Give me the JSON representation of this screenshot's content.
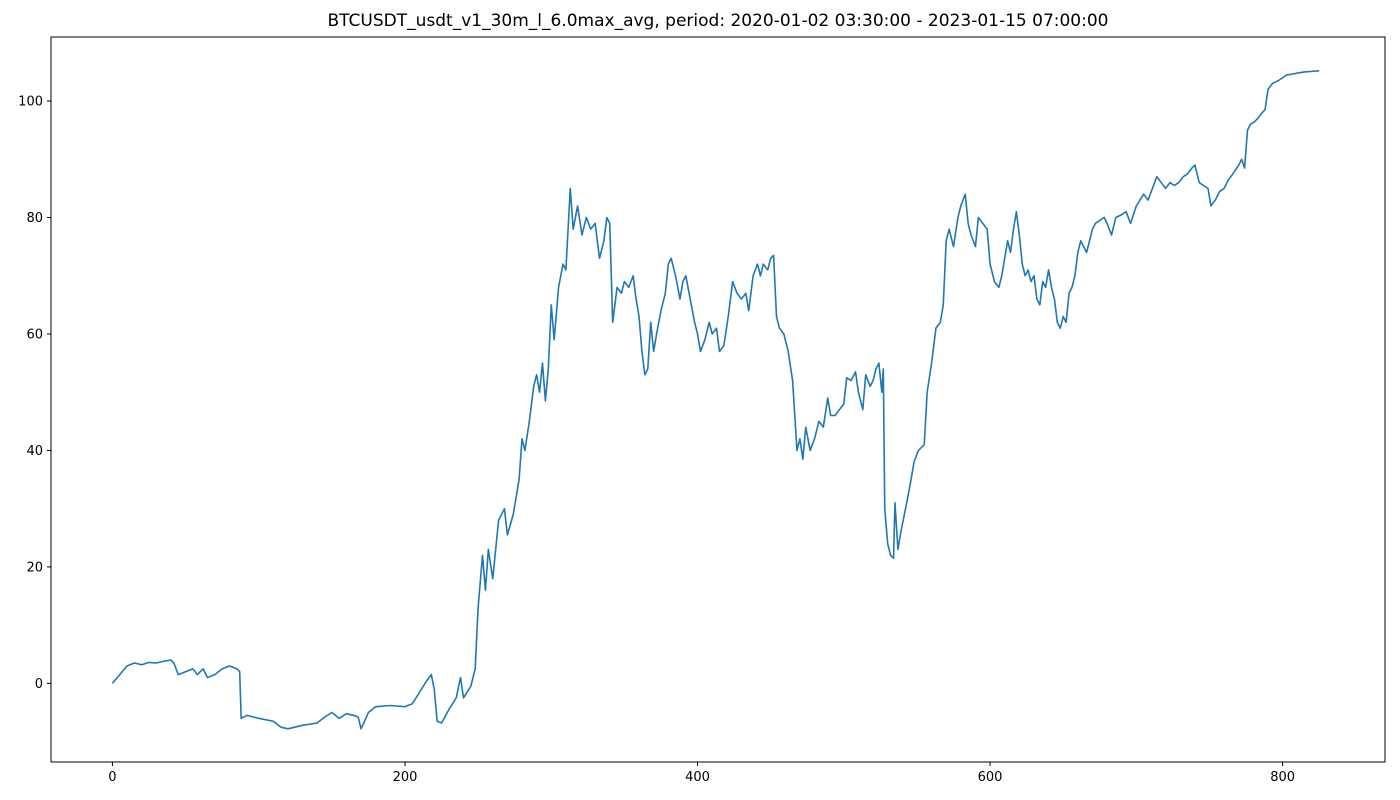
{
  "chart_data": {
    "type": "line",
    "title": "BTCUSDT_usdt_v1_30m_l_6.0max_avg, period: 2020-01-02 03:30:00 - 2023-01-15 07:00:00",
    "xlabel": "",
    "ylabel": "",
    "xlim": [
      -42,
      870
    ],
    "ylim": [
      -13.5,
      111
    ],
    "x_ticks": [
      0,
      200,
      400,
      600,
      800
    ],
    "y_ticks": [
      0,
      20,
      40,
      60,
      80,
      100
    ],
    "grid": false,
    "legend": "none",
    "series": [
      {
        "color": "#1f77b4",
        "points": [
          [
            0,
            0
          ],
          [
            5,
            1.5
          ],
          [
            10,
            3
          ],
          [
            15,
            3.5
          ],
          [
            20,
            3.2
          ],
          [
            25,
            3.6
          ],
          [
            30,
            3.5
          ],
          [
            35,
            3.8
          ],
          [
            40,
            4
          ],
          [
            42,
            3.5
          ],
          [
            45,
            1.5
          ],
          [
            50,
            2
          ],
          [
            55,
            2.5
          ],
          [
            58,
            1.5
          ],
          [
            62,
            2.5
          ],
          [
            65,
            1
          ],
          [
            70,
            1.5
          ],
          [
            75,
            2.5
          ],
          [
            80,
            3
          ],
          [
            85,
            2.5
          ],
          [
            87,
            2
          ],
          [
            88,
            -6
          ],
          [
            92,
            -5.5
          ],
          [
            100,
            -6
          ],
          [
            110,
            -6.5
          ],
          [
            115,
            -7.5
          ],
          [
            120,
            -7.8
          ],
          [
            130,
            -7.2
          ],
          [
            140,
            -6.8
          ],
          [
            145,
            -5.8
          ],
          [
            150,
            -5
          ],
          [
            155,
            -6
          ],
          [
            160,
            -5.2
          ],
          [
            165,
            -5.5
          ],
          [
            168,
            -5.8
          ],
          [
            170,
            -7.8
          ],
          [
            175,
            -5
          ],
          [
            180,
            -4
          ],
          [
            190,
            -3.8
          ],
          [
            200,
            -4
          ],
          [
            205,
            -3.5
          ],
          [
            210,
            -1.5
          ],
          [
            215,
            0.5
          ],
          [
            218,
            1.5
          ],
          [
            220,
            -1
          ],
          [
            222,
            -6.5
          ],
          [
            225,
            -6.8
          ],
          [
            230,
            -4.5
          ],
          [
            235,
            -2.5
          ],
          [
            238,
            1
          ],
          [
            240,
            -2.5
          ],
          [
            245,
            -0.5
          ],
          [
            248,
            2.5
          ],
          [
            250,
            13
          ],
          [
            253,
            22
          ],
          [
            255,
            16
          ],
          [
            257,
            23
          ],
          [
            260,
            18
          ],
          [
            262,
            23
          ],
          [
            264,
            28
          ],
          [
            268,
            30
          ],
          [
            270,
            25.5
          ],
          [
            274,
            29
          ],
          [
            278,
            35
          ],
          [
            280,
            42
          ],
          [
            282,
            40
          ],
          [
            285,
            45
          ],
          [
            288,
            51
          ],
          [
            290,
            53
          ],
          [
            292,
            50
          ],
          [
            294,
            55
          ],
          [
            296,
            48.5
          ],
          [
            298,
            54
          ],
          [
            300,
            65
          ],
          [
            302,
            59
          ],
          [
            305,
            68
          ],
          [
            308,
            72
          ],
          [
            310,
            71
          ],
          [
            313,
            85
          ],
          [
            315,
            78
          ],
          [
            318,
            82
          ],
          [
            321,
            77
          ],
          [
            324,
            80
          ],
          [
            327,
            78
          ],
          [
            330,
            79
          ],
          [
            333,
            73
          ],
          [
            336,
            76
          ],
          [
            338,
            80
          ],
          [
            340,
            79
          ],
          [
            342,
            62
          ],
          [
            345,
            68
          ],
          [
            348,
            67
          ],
          [
            350,
            69
          ],
          [
            353,
            68
          ],
          [
            356,
            70
          ],
          [
            358,
            66
          ],
          [
            360,
            63
          ],
          [
            362,
            57
          ],
          [
            364,
            53
          ],
          [
            366,
            54
          ],
          [
            368,
            62
          ],
          [
            370,
            57
          ],
          [
            372,
            60
          ],
          [
            375,
            64
          ],
          [
            378,
            67
          ],
          [
            380,
            72
          ],
          [
            382,
            73
          ],
          [
            385,
            70
          ],
          [
            388,
            66
          ],
          [
            390,
            69
          ],
          [
            392,
            70
          ],
          [
            395,
            66
          ],
          [
            398,
            62
          ],
          [
            400,
            60
          ],
          [
            402,
            57
          ],
          [
            405,
            59
          ],
          [
            408,
            62
          ],
          [
            410,
            60
          ],
          [
            413,
            61
          ],
          [
            415,
            57
          ],
          [
            418,
            58
          ],
          [
            421,
            63
          ],
          [
            424,
            69
          ],
          [
            427,
            67
          ],
          [
            430,
            66
          ],
          [
            433,
            67
          ],
          [
            435,
            64
          ],
          [
            438,
            70
          ],
          [
            441,
            72
          ],
          [
            443,
            70
          ],
          [
            445,
            72
          ],
          [
            448,
            71
          ],
          [
            450,
            73
          ],
          [
            452,
            73.5
          ],
          [
            454,
            63
          ],
          [
            456,
            61
          ],
          [
            459,
            60
          ],
          [
            462,
            57
          ],
          [
            465,
            52
          ],
          [
            468,
            40
          ],
          [
            470,
            42
          ],
          [
            472,
            38.5
          ],
          [
            474,
            44
          ],
          [
            477,
            40
          ],
          [
            480,
            42
          ],
          [
            483,
            45
          ],
          [
            486,
            44
          ],
          [
            489,
            49
          ],
          [
            491,
            46
          ],
          [
            494,
            46
          ],
          [
            497,
            47
          ],
          [
            500,
            48
          ],
          [
            502,
            52.5
          ],
          [
            505,
            52
          ],
          [
            508,
            53.5
          ],
          [
            510,
            50
          ],
          [
            513,
            47
          ],
          [
            515,
            53
          ],
          [
            518,
            51
          ],
          [
            520,
            52
          ],
          [
            522,
            54
          ],
          [
            524,
            55
          ],
          [
            526,
            50
          ],
          [
            527,
            54
          ],
          [
            528,
            30
          ],
          [
            530,
            24
          ],
          [
            532,
            22
          ],
          [
            534,
            21.5
          ],
          [
            535,
            31
          ],
          [
            537,
            23
          ],
          [
            539,
            26
          ],
          [
            541,
            28.5
          ],
          [
            543,
            31
          ],
          [
            546,
            35
          ],
          [
            548,
            38
          ],
          [
            551,
            40
          ],
          [
            553,
            40.5
          ],
          [
            555,
            41
          ],
          [
            557,
            50
          ],
          [
            560,
            55
          ],
          [
            563,
            61
          ],
          [
            566,
            62
          ],
          [
            568,
            65
          ],
          [
            570,
            76
          ],
          [
            572,
            78
          ],
          [
            575,
            75
          ],
          [
            578,
            80
          ],
          [
            580,
            82
          ],
          [
            583,
            84
          ],
          [
            585,
            79
          ],
          [
            587,
            77
          ],
          [
            590,
            75
          ],
          [
            592,
            80
          ],
          [
            595,
            79
          ],
          [
            598,
            78
          ],
          [
            600,
            72
          ],
          [
            603,
            69
          ],
          [
            606,
            68
          ],
          [
            608,
            70
          ],
          [
            610,
            73
          ],
          [
            612,
            76
          ],
          [
            614,
            74
          ],
          [
            616,
            78
          ],
          [
            618,
            81
          ],
          [
            620,
            77
          ],
          [
            622,
            72
          ],
          [
            624,
            70
          ],
          [
            626,
            71
          ],
          [
            628,
            69
          ],
          [
            630,
            70
          ],
          [
            632,
            66
          ],
          [
            634,
            65
          ],
          [
            636,
            69
          ],
          [
            638,
            68
          ],
          [
            640,
            71
          ],
          [
            642,
            68
          ],
          [
            644,
            66
          ],
          [
            646,
            62
          ],
          [
            648,
            61
          ],
          [
            650,
            63
          ],
          [
            652,
            62
          ],
          [
            654,
            67
          ],
          [
            656,
            68
          ],
          [
            658,
            70
          ],
          [
            660,
            74
          ],
          [
            662,
            76
          ],
          [
            664,
            75
          ],
          [
            666,
            74
          ],
          [
            668,
            76
          ],
          [
            670,
            78
          ],
          [
            672,
            79
          ],
          [
            675,
            79.5
          ],
          [
            678,
            80
          ],
          [
            680,
            79
          ],
          [
            683,
            77
          ],
          [
            686,
            80
          ],
          [
            690,
            80.5
          ],
          [
            693,
            81
          ],
          [
            696,
            79
          ],
          [
            700,
            82
          ],
          [
            705,
            84
          ],
          [
            708,
            83
          ],
          [
            711,
            85
          ],
          [
            714,
            87
          ],
          [
            717,
            86
          ],
          [
            720,
            85
          ],
          [
            723,
            86
          ],
          [
            726,
            85.5
          ],
          [
            729,
            86
          ],
          [
            732,
            87
          ],
          [
            735,
            87.5
          ],
          [
            738,
            88.5
          ],
          [
            740,
            89
          ],
          [
            743,
            86
          ],
          [
            746,
            85.5
          ],
          [
            749,
            85
          ],
          [
            751,
            82
          ],
          [
            754,
            83
          ],
          [
            757,
            84.5
          ],
          [
            760,
            85
          ],
          [
            763,
            86.5
          ],
          [
            766,
            87.5
          ],
          [
            770,
            89
          ],
          [
            772,
            90
          ],
          [
            774,
            88.5
          ],
          [
            776,
            95
          ],
          [
            778,
            96
          ],
          [
            781,
            96.5
          ],
          [
            783,
            97
          ],
          [
            786,
            98
          ],
          [
            788,
            98.5
          ],
          [
            790,
            102
          ],
          [
            793,
            103
          ],
          [
            797,
            103.5
          ],
          [
            800,
            104
          ],
          [
            803,
            104.5
          ],
          [
            806,
            104.6
          ],
          [
            810,
            104.8
          ],
          [
            815,
            105
          ],
          [
            820,
            105.1
          ],
          [
            825,
            105.2
          ]
        ]
      }
    ]
  }
}
